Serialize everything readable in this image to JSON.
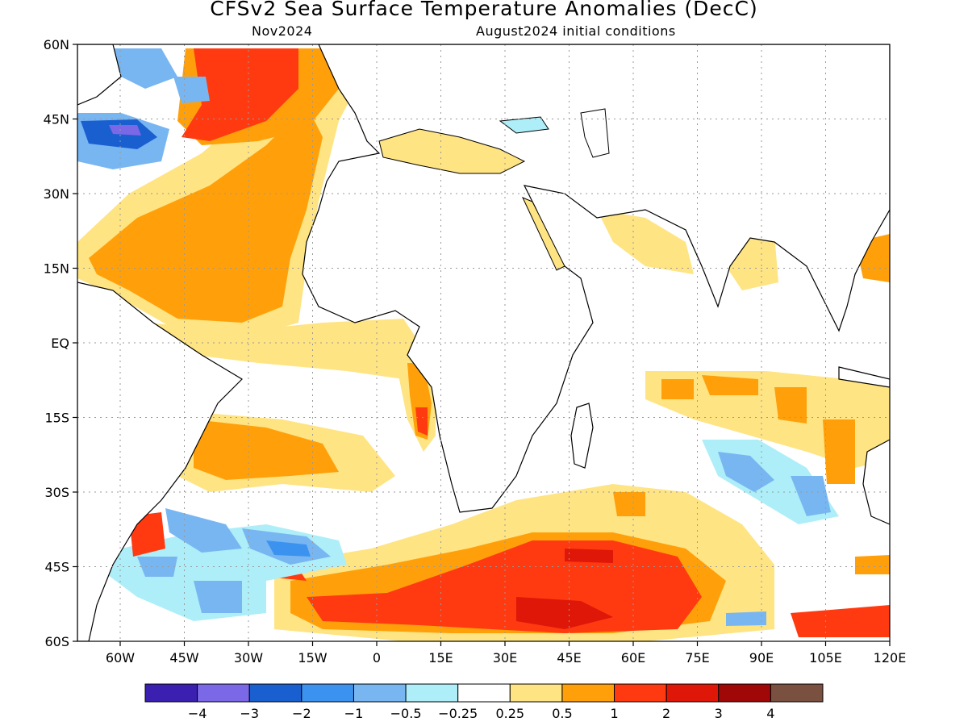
{
  "title": "CFSv2 Sea Surface Temperature Anomalies (DecC)",
  "subtitle_left": "Nov2024",
  "subtitle_right": "August2024 initial conditions",
  "map": {
    "lon_range": [
      -70,
      120
    ],
    "lat_range": [
      -60,
      60
    ],
    "x_ticks": [
      {
        "lon": -60,
        "label": "60W"
      },
      {
        "lon": -45,
        "label": "45W"
      },
      {
        "lon": -30,
        "label": "30W"
      },
      {
        "lon": -15,
        "label": "15W"
      },
      {
        "lon": 0,
        "label": "0"
      },
      {
        "lon": 15,
        "label": "15E"
      },
      {
        "lon": 30,
        "label": "30E"
      },
      {
        "lon": 45,
        "label": "45E"
      },
      {
        "lon": 60,
        "label": "60E"
      },
      {
        "lon": 75,
        "label": "75E"
      },
      {
        "lon": 90,
        "label": "90E"
      },
      {
        "lon": 105,
        "label": "105E"
      },
      {
        "lon": 120,
        "label": "120E"
      }
    ],
    "y_ticks": [
      {
        "lat": 60,
        "label": "60N"
      },
      {
        "lat": 45,
        "label": "45N"
      },
      {
        "lat": 30,
        "label": "30N"
      },
      {
        "lat": 15,
        "label": "15N"
      },
      {
        "lat": 0,
        "label": "EQ"
      },
      {
        "lat": -15,
        "label": "15S"
      },
      {
        "lat": -30,
        "label": "30S"
      },
      {
        "lat": -45,
        "label": "45S"
      },
      {
        "lat": -60,
        "label": "60S"
      }
    ],
    "gridlines": "dotted"
  },
  "colorbar": {
    "colors": [
      "#3b1fb0",
      "#7b68e6",
      "#1a5fd0",
      "#3c93ef",
      "#78b6f2",
      "#aeeef8",
      "#ffffff",
      "#ffe483",
      "#ffa00b",
      "#ff3a10",
      "#de1708",
      "#a00808",
      "#7a5040"
    ],
    "labels": [
      "-4",
      "-3",
      "-2",
      "-1",
      "-0.5",
      "-0.25",
      "0.25",
      "0.5",
      "1",
      "2",
      "3",
      "4"
    ]
  },
  "colors": {
    "pos_light": "#ffe483",
    "pos_mid": "#ffa00b",
    "pos_strong": "#ff3a10",
    "pos_deep": "#de1708",
    "neg_light": "#aeeef8",
    "neg_mid": "#78b6f2",
    "neg_strong": "#3c93ef",
    "neg_deep": "#1a5fd0",
    "neg_deepest": "#7b68e6"
  }
}
